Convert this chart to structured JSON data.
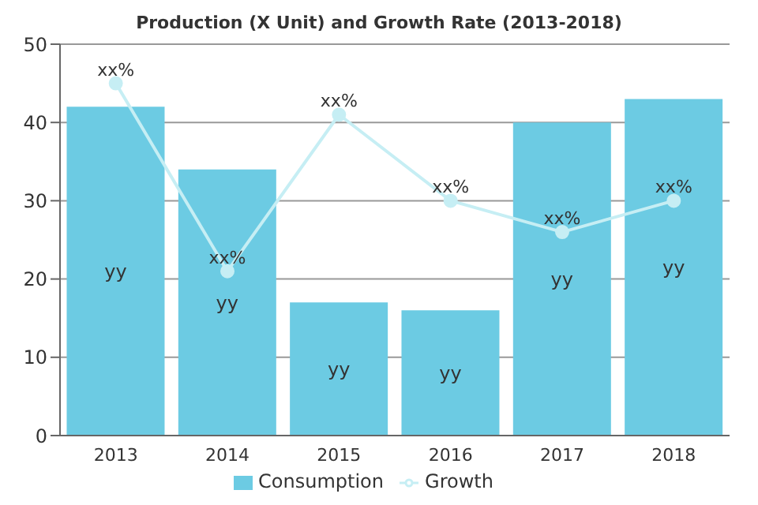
{
  "chart_data": {
    "type": "bar",
    "title": "Production (X Unit) and Growth Rate (2013-2018)",
    "categories": [
      "2013",
      "2014",
      "2015",
      "2016",
      "2017",
      "2018"
    ],
    "series": [
      {
        "name": "Consumption",
        "color": "#6ccbe3",
        "values": [
          42,
          34,
          17,
          16,
          40,
          43
        ],
        "value_labels": [
          "yy",
          "yy",
          "yy",
          "yy",
          "yy",
          "yy"
        ]
      },
      {
        "name": "Growth",
        "type": "line",
        "color": "#c6eef4",
        "values": [
          45,
          21,
          41,
          30,
          26,
          30
        ],
        "value_labels": [
          "xx%",
          "xx%",
          "xx%",
          "xx%",
          "xx%",
          "xx%"
        ]
      }
    ],
    "ylim": [
      0,
      50
    ],
    "yticks": [
      0,
      10,
      20,
      30,
      40,
      50
    ],
    "grid": "y",
    "legend": "bottom",
    "marker": "circle",
    "line_style": "solid"
  }
}
